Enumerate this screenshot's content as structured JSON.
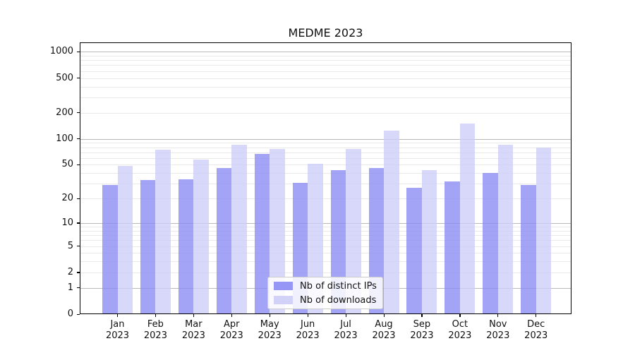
{
  "chart_data": {
    "type": "bar",
    "title": "MEDME 2023",
    "x_axis": {
      "months": [
        "Jan",
        "Feb",
        "Mar",
        "Apr",
        "May",
        "Jun",
        "Jul",
        "Aug",
        "Sep",
        "Oct",
        "Nov",
        "Dec"
      ],
      "year_label": "2023"
    },
    "y_axis": {
      "scale": "log1p",
      "ticks": [
        0,
        1,
        2,
        5,
        10,
        20,
        50,
        100,
        200,
        500,
        1000
      ],
      "major_gridlines": [
        1,
        10,
        100,
        1000
      ],
      "top_value": 1000
    },
    "series": [
      {
        "name": "Nb of distinct IPs",
        "color": "#8b8bf5",
        "values": [
          29,
          33,
          34,
          46,
          67,
          31,
          43,
          46,
          27,
          32,
          40,
          29
        ]
      },
      {
        "name": "Nb of downloads",
        "color": "#cdcdf8",
        "values": [
          49,
          75,
          58,
          85,
          76,
          51,
          76,
          125,
          43,
          150,
          85,
          80
        ]
      }
    ],
    "legend": {
      "position": "lower center"
    },
    "grid": true
  }
}
